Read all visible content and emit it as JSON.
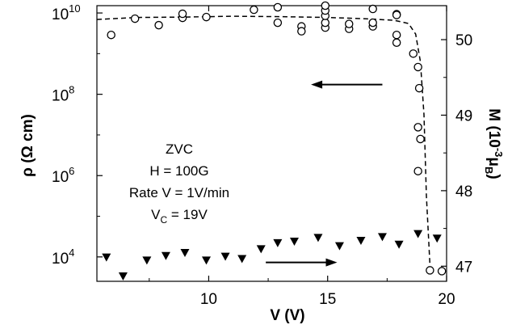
{
  "chart_data": {
    "type": "scatter",
    "xlabel": "V (V)",
    "ylabel_left": "ρ (Ω cm)",
    "ylabel_right_parts": [
      "M (10",
      "-3",
      "μ",
      "B",
      ")"
    ],
    "xlim": [
      5.3,
      20
    ],
    "ylim_left_log10": [
      3.4,
      10.18
    ],
    "ylim_right": [
      46.8,
      50.45
    ],
    "x_ticks": [
      10,
      15,
      20
    ],
    "y_left_ticks": [
      {
        "exp": 4,
        "base": "10",
        "sup": "4"
      },
      {
        "exp": 6,
        "base": "10",
        "sup": "6"
      },
      {
        "exp": 8,
        "base": "10",
        "sup": "8"
      },
      {
        "exp": 10,
        "base": "10",
        "sup": "10"
      }
    ],
    "y_right_ticks": [
      47,
      48,
      49,
      50
    ],
    "annotation": {
      "line1": "ZVC",
      "line2": "H = 100G",
      "line3": "Rate V = 1V/min",
      "line4_base": "V",
      "line4_sub": "C",
      "line4_rest": " = 19V"
    },
    "series": [
      {
        "marker": "open-circle",
        "axis": "left",
        "points": [
          [
            5.9,
            9.46
          ],
          [
            6.9,
            9.86
          ],
          [
            7.9,
            9.7
          ],
          [
            8.9,
            9.88
          ],
          [
            8.9,
            9.98
          ],
          [
            9.9,
            9.9
          ],
          [
            11.9,
            10.08
          ],
          [
            12.9,
            9.76
          ],
          [
            12.9,
            10.14
          ],
          [
            13.9,
            9.67
          ],
          [
            13.9,
            9.55
          ],
          [
            14.9,
            9.64
          ],
          [
            14.9,
            9.76
          ],
          [
            14.9,
            9.93
          ],
          [
            14.9,
            10.06
          ],
          [
            14.9,
            10.18
          ],
          [
            15.9,
            9.61
          ],
          [
            15.9,
            9.73
          ],
          [
            16.9,
            9.67
          ],
          [
            16.9,
            9.76
          ],
          [
            16.9,
            10.1
          ],
          [
            17.9,
            9.97
          ],
          [
            17.9,
            9.95
          ],
          [
            17.9,
            9.46
          ],
          [
            17.9,
            9.27
          ],
          [
            18.6,
            9.0
          ],
          [
            18.8,
            8.67
          ],
          [
            18.85,
            8.15
          ],
          [
            18.8,
            7.19
          ],
          [
            18.9,
            6.9
          ],
          [
            18.8,
            6.11
          ],
          [
            19.3,
            3.67
          ],
          [
            19.8,
            3.65
          ]
        ]
      },
      {
        "marker": "filled-triangle-down",
        "axis": "right",
        "points": [
          [
            5.7,
            47.12
          ],
          [
            6.4,
            46.87
          ],
          [
            7.4,
            47.08
          ],
          [
            8.2,
            47.14
          ],
          [
            9.0,
            47.18
          ],
          [
            9.9,
            47.08
          ],
          [
            10.7,
            47.13
          ],
          [
            11.4,
            47.1
          ],
          [
            12.2,
            47.23
          ],
          [
            12.9,
            47.31
          ],
          [
            13.6,
            47.33
          ],
          [
            14.6,
            47.38
          ],
          [
            15.5,
            47.27
          ],
          [
            16.4,
            47.34
          ],
          [
            17.3,
            47.39
          ],
          [
            18.0,
            47.29
          ],
          [
            18.8,
            47.43
          ],
          [
            19.6,
            47.37
          ]
        ]
      }
    ],
    "fit_curve": {
      "style": "dashed",
      "axis": "left",
      "points": [
        [
          5.3,
          9.84
        ],
        [
          7.0,
          9.89
        ],
        [
          9.0,
          9.9
        ],
        [
          11.0,
          9.92
        ],
        [
          13.0,
          9.91
        ],
        [
          15.0,
          9.89
        ],
        [
          16.5,
          9.86
        ],
        [
          17.8,
          9.82
        ],
        [
          18.4,
          9.74
        ],
        [
          18.7,
          9.48
        ],
        [
          18.9,
          8.8
        ],
        [
          19.05,
          7.5
        ],
        [
          19.15,
          5.5
        ],
        [
          19.3,
          3.8
        ]
      ]
    },
    "arrows": [
      {
        "direction": "left",
        "points_to": "left-axis",
        "y_log10": 8.24,
        "x_from": 17.3,
        "x_to": 14.3
      },
      {
        "direction": "right",
        "points_to": "right-axis",
        "y_right": 47.05,
        "x_from": 12.4,
        "x_to": 15.4
      }
    ]
  }
}
